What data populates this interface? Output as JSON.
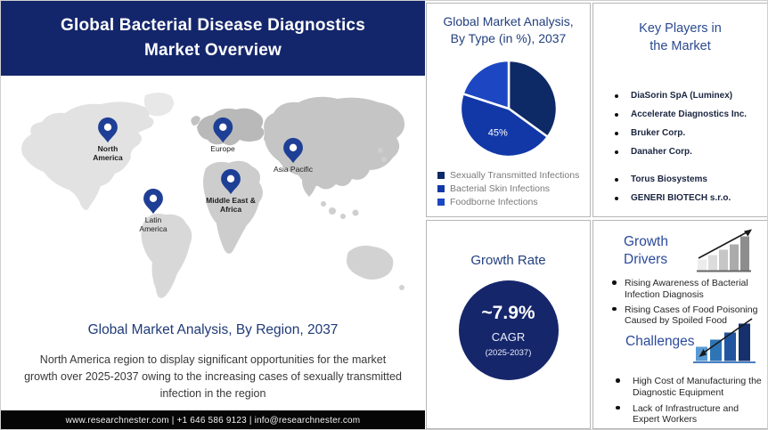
{
  "header": {
    "title_lines": [
      "Global Bacterial Disease Diagnostics",
      "Market Overview"
    ]
  },
  "map_section": {
    "regions": [
      "North America",
      "Europe",
      "Asia Pacific",
      "Middle East & Africa",
      "Latin America"
    ],
    "caption": "Global Market Analysis, By Region, 2037",
    "description": "North America region to display significant opportunities for the market growth over 2025-2037 owing to the increasing cases of sexually transmitted infection in the region"
  },
  "footer": {
    "text": "www.researchnester.com | +1 646 586 9123 | info@researchnester.com"
  },
  "type_panel": {
    "title_lines": [
      "Global Market Analysis,",
      "By Type (in %), 2037"
    ]
  },
  "chart_data": [
    {
      "type": "pie",
      "title": "Global Market Analysis, By Type (in %), 2037",
      "labels": [
        "Sexually Transmitted Infections",
        "Bacterial Skin Infections",
        "Foodborne Infections"
      ],
      "values": [
        35,
        45,
        20
      ],
      "value_labels": [
        "",
        "45%",
        ""
      ],
      "colors": [
        "#0e2a66",
        "#1238a8",
        "#1d47c2"
      ],
      "legend_position": "bottom-left"
    }
  ],
  "growth_rate_panel": {
    "title": "Growth Rate",
    "value": "~7.9%",
    "metric": "CAGR",
    "period": "(2025-2037)",
    "circle_color": "#16266b"
  },
  "key_players_panel": {
    "title_lines": [
      "Key Players in",
      "the Market"
    ],
    "items": [
      "DiaSorin SpA (Luminex)",
      "Accelerate Diagnostics Inc.",
      "Bruker Corp.",
      "Danaher Corp.",
      "Torus Biosystems",
      "GENERI BIOTECH s.r.o."
    ]
  },
  "drivers_panel": {
    "title_lines": [
      "Growth",
      "Drivers"
    ],
    "icon": "rising-trend-bars-icon",
    "items": [
      "Rising Awareness of Bacterial Infection Diagnosis",
      "Rising Cases of Food Poisoning Caused by Spoiled Food"
    ]
  },
  "challenges_panel": {
    "title": "Challenges",
    "icon": "trend-bars-down-arrow-icon",
    "items": [
      "High Cost of Manufacturing the Diagnostic Equipment",
      "Lack of Infrastructure and Expert Workers"
    ]
  },
  "colors": {
    "header_bg": "#14266b",
    "footer_bg": "#060606",
    "heading_text": "#23407f",
    "pin": "#1e3f96",
    "growth_circle": "#16266b",
    "key_player_text": "#1a2540",
    "legend_text": "#7a7a7a"
  }
}
